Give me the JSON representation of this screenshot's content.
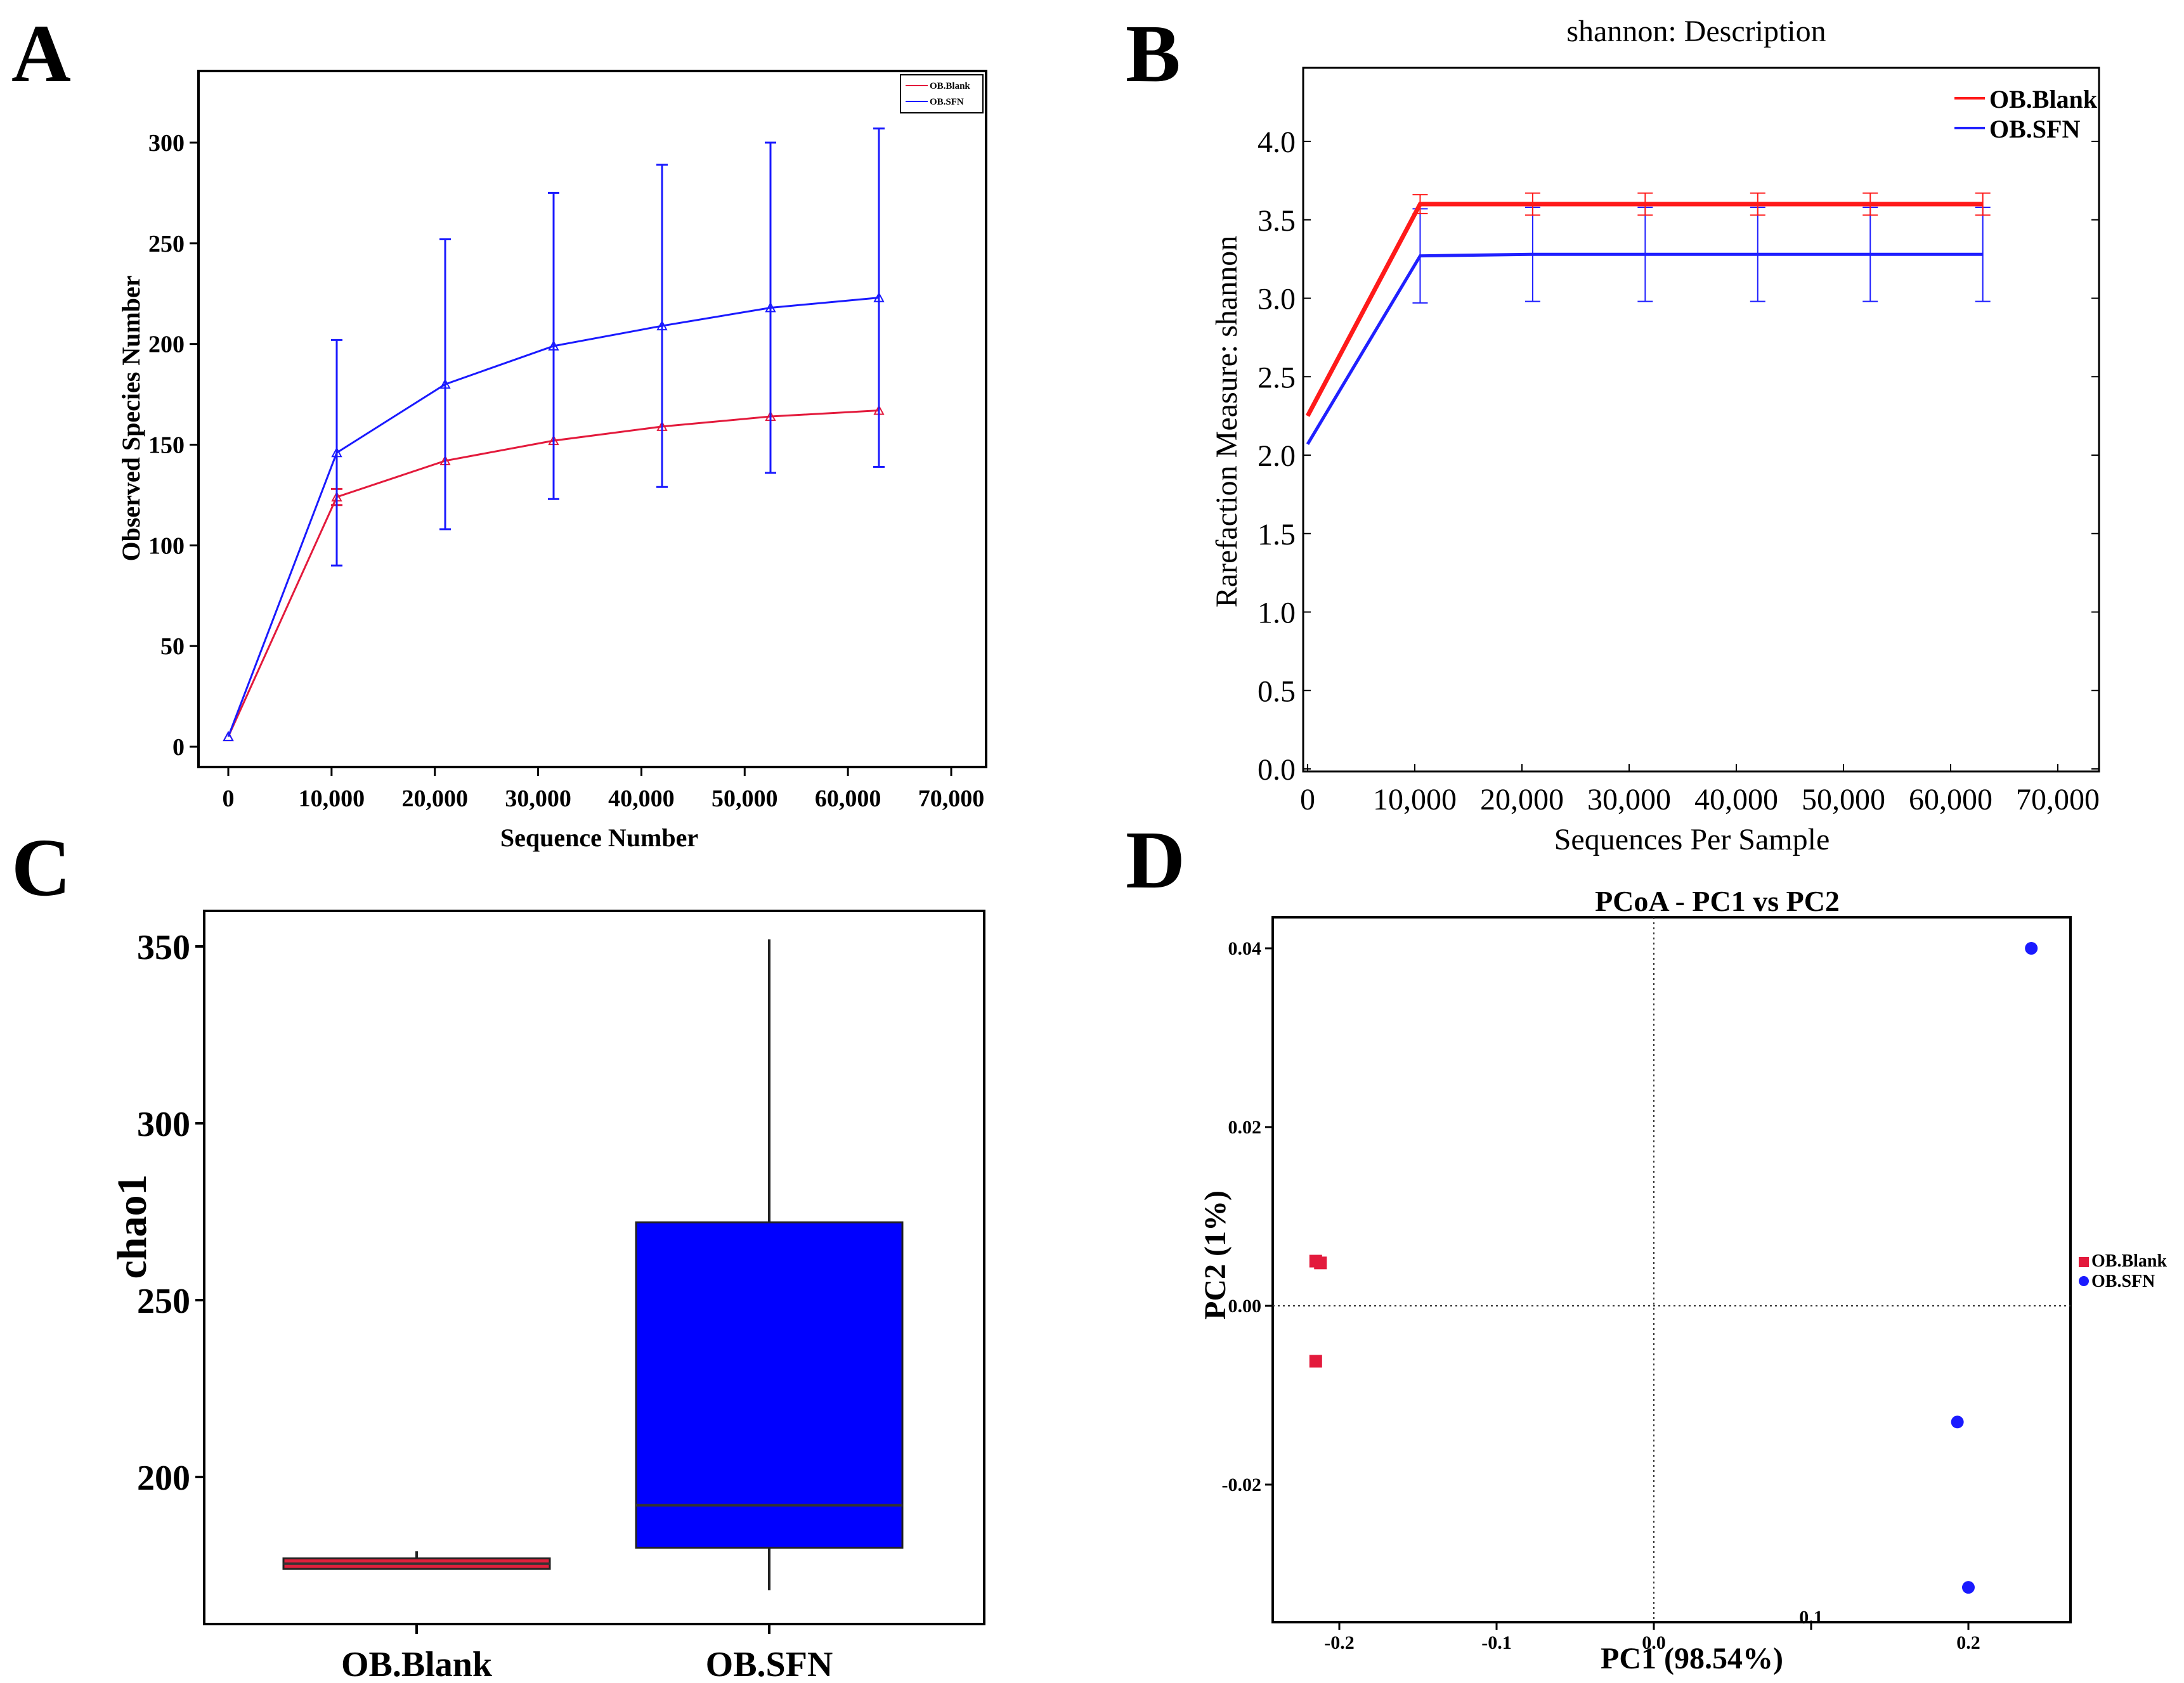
{
  "panels": {
    "a": "A",
    "b": "B",
    "c": "C",
    "d": "D"
  },
  "colors": {
    "blank": "#e31a3c",
    "sfn": "#1a1aff",
    "blankB": "#ff1a1a",
    "sfnB": "#2020ff",
    "boxSfn": "#0000ff",
    "boxBlank": "#e0203c"
  },
  "chart_data": [
    {
      "type": "line",
      "xlabel": "Sequence Number",
      "ylabel": "Observed Species Number",
      "xlim": [
        0,
        70000
      ],
      "ylim": [
        0,
        330
      ],
      "xticks": [
        "0",
        "10,000",
        "20,000",
        "30,000",
        "40,000",
        "50,000",
        "60,000",
        "70,000"
      ],
      "xtick_values": [
        0,
        10000,
        20000,
        30000,
        40000,
        50000,
        60000,
        70000
      ],
      "yticks": [
        "0",
        "50",
        "100",
        "150",
        "200",
        "250",
        "300"
      ],
      "ytick_values": [
        0,
        50,
        100,
        150,
        200,
        250,
        300
      ],
      "legend_position": "top-right",
      "x": [
        0,
        10500,
        21000,
        31500,
        42000,
        52500,
        63000
      ],
      "series": [
        {
          "name": "OB.Blank",
          "values": [
            5,
            124,
            142,
            152,
            159,
            164,
            167
          ],
          "err": [
            0,
            4,
            0,
            0,
            0,
            0,
            0
          ]
        },
        {
          "name": "OB.SFN",
          "values": [
            5,
            146,
            180,
            199,
            209,
            218,
            223
          ],
          "err": [
            0,
            56,
            72,
            76,
            80,
            82,
            84
          ]
        }
      ]
    },
    {
      "type": "line",
      "title": "shannon: Description",
      "xlabel": "Sequences Per Sample",
      "ylabel": "Rarefaction Measure: shannon",
      "xlim": [
        0,
        73000
      ],
      "ylim": [
        0,
        4.45
      ],
      "xticks": [
        "0",
        "10,000",
        "20,000",
        "30,000",
        "40,000",
        "50,000",
        "60,000",
        "70,000"
      ],
      "xtick_values": [
        0,
        10000,
        20000,
        30000,
        40000,
        50000,
        60000,
        70000
      ],
      "yticks": [
        "0.0",
        "0.5",
        "1.0",
        "1.5",
        "2.0",
        "2.5",
        "3.0",
        "3.5",
        "4.0"
      ],
      "ytick_values": [
        0,
        0.5,
        1.0,
        1.5,
        2.0,
        2.5,
        3.0,
        3.5,
        4.0
      ],
      "legend_position": "top-right",
      "x": [
        0,
        10500,
        21000,
        31500,
        42000,
        52500,
        63000
      ],
      "series": [
        {
          "name": "OB.Blank",
          "values": [
            2.25,
            3.6,
            3.6,
            3.6,
            3.6,
            3.6,
            3.6
          ],
          "err": [
            0,
            0.06,
            0.07,
            0.07,
            0.07,
            0.07,
            0.07
          ]
        },
        {
          "name": "OB.SFN",
          "values": [
            2.07,
            3.27,
            3.28,
            3.28,
            3.28,
            3.28,
            3.28
          ],
          "err": [
            0,
            0.3,
            0.3,
            0.3,
            0.3,
            0.3,
            0.3
          ]
        }
      ]
    },
    {
      "type": "box",
      "ylabel": "chao1",
      "ylim": [
        163,
        358
      ],
      "yticks": [
        "200",
        "250",
        "300",
        "350"
      ],
      "ytick_values": [
        200,
        250,
        300,
        350
      ],
      "categories": [
        "OB.Blank",
        "OB.SFN"
      ],
      "boxes": [
        {
          "name": "OB.Blank",
          "whisker_low": 174,
          "q1": 174,
          "median": 175.5,
          "q3": 177,
          "whisker_high": 179
        },
        {
          "name": "OB.SFN",
          "whisker_low": 168,
          "q1": 180,
          "median": 192,
          "q3": 272,
          "whisker_high": 352
        }
      ]
    },
    {
      "type": "scatter",
      "title": "PCoA - PC1 vs PC2",
      "xlabel": "PC1 (98.54%)",
      "ylabel": "PC2 (1%)",
      "xlim": [
        -0.235,
        0.265
      ],
      "ylim": [
        -0.0355,
        0.0435
      ],
      "xticks": [
        "-0.2",
        "-0.1",
        "0.0",
        "0.1",
        "0.2"
      ],
      "xtick_values": [
        -0.2,
        -0.1,
        0.0,
        0.1,
        0.2
      ],
      "yticks": [
        "-0.02",
        "0.00",
        "0.02",
        "0.04"
      ],
      "ytick_values": [
        -0.02,
        0.0,
        0.02,
        0.04
      ],
      "legend_position": "right",
      "series": [
        {
          "name": "OB.Blank",
          "marker": "square",
          "points": [
            [
              -0.215,
              0.005
            ],
            [
              -0.212,
              0.0048
            ],
            [
              -0.215,
              -0.0062
            ]
          ]
        },
        {
          "name": "OB.SFN",
          "marker": "circle",
          "points": [
            [
              0.24,
              0.04
            ],
            [
              0.193,
              -0.013
            ],
            [
              0.2,
              -0.0315
            ]
          ]
        }
      ]
    }
  ]
}
